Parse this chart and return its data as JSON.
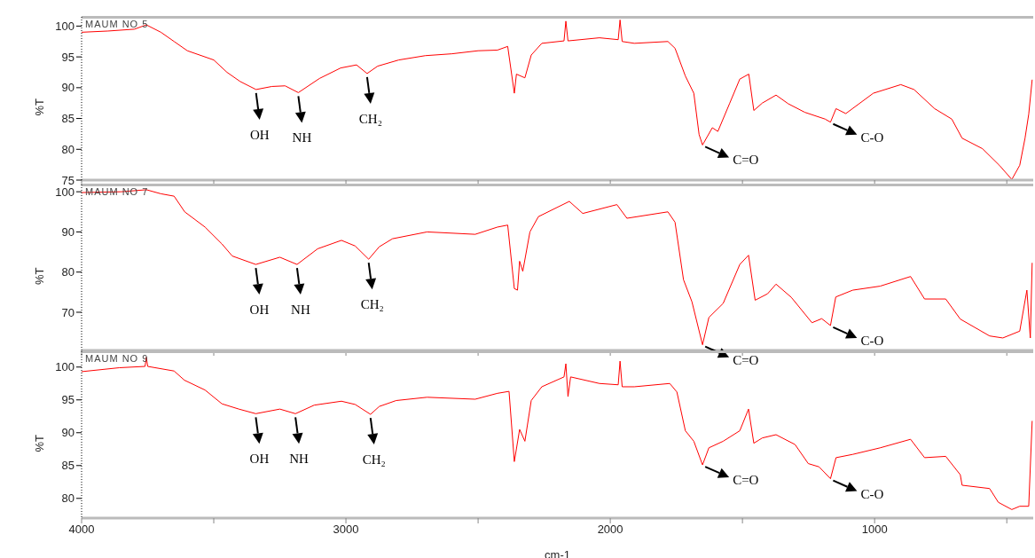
{
  "chart_data": [
    {
      "type": "line",
      "ylabel": "%T",
      "xlim": [
        4000,
        400
      ],
      "xticks": [
        4000,
        {
          "value": 3500,
          "label": null
        },
        3000,
        {
          "value": 2500,
          "label": null
        },
        2000,
        {
          "value": 1500,
          "label": null
        },
        1000,
        {
          "value": 500,
          "label": null
        }
      ],
      "ylim": [
        75,
        101.5
      ],
      "yticks": [
        75,
        80,
        85,
        90,
        95,
        100
      ],
      "tick_labels": "y",
      "marker": "none",
      "series": [
        {
          "name": "MAUM NO 5",
          "color": "#ff0000",
          "x": [
            4000,
            3900,
            3800,
            3755,
            3700,
            3650,
            3600,
            3500,
            3450,
            3400,
            3340,
            3280,
            3230,
            3180,
            3100,
            3020,
            2960,
            2920,
            2880,
            2800,
            2700,
            2600,
            2500,
            2427,
            2388,
            2363,
            2355,
            2323,
            2299,
            2259,
            2175,
            2168,
            2160,
            2041,
            1970,
            1963,
            1955,
            1909,
            1782,
            1755,
            1716,
            1684,
            1664,
            1651,
            1614,
            1593,
            1548,
            1510,
            1476,
            1457,
            1425,
            1373,
            1327,
            1264,
            1187,
            1167,
            1146,
            1109,
            1005,
            901,
            851,
            773,
            708,
            669,
            592,
            528,
            481,
            451,
            431,
            417,
            404
          ],
          "values": [
            99,
            99.2,
            99.5,
            100.2,
            99,
            97.5,
            96,
            94.5,
            92.5,
            91,
            89.7,
            90.2,
            90.3,
            89.2,
            91.5,
            93.2,
            93.7,
            92.3,
            93.5,
            94.5,
            95.2,
            95.5,
            96,
            96.1,
            96.7,
            89.1,
            92.2,
            91.6,
            95.3,
            97.2,
            97.6,
            100.8,
            97.6,
            98.1,
            97.8,
            101,
            97.5,
            97.2,
            97.5,
            96.4,
            91.9,
            89.1,
            82.4,
            80.7,
            83.5,
            82.9,
            87.5,
            91.4,
            92.2,
            86.3,
            87.5,
            88.8,
            87.4,
            86,
            84.9,
            84.4,
            86.6,
            85.8,
            89.1,
            90.5,
            89.7,
            86.6,
            84.9,
            81.8,
            80.1,
            77.4,
            75.1,
            77.4,
            81.8,
            85.7,
            91.3
          ]
        }
      ],
      "annotations": [
        {
          "text": "OH",
          "x": 3340,
          "y": 89.7
        },
        {
          "text": "NH",
          "x": 3180,
          "y": 89.2
        },
        {
          "text": "CH₂",
          "x": 2920,
          "y": 92.3
        },
        {
          "text": "C=O",
          "x": 1651,
          "y": 80.7
        },
        {
          "text": "C-O",
          "x": 1167,
          "y": 84.4
        }
      ]
    },
    {
      "type": "line",
      "ylabel": "%T",
      "xlim": [
        4000,
        400
      ],
      "xticks": [
        4000,
        {
          "value": 3500,
          "label": null
        },
        3000,
        {
          "value": 2500,
          "label": null
        },
        2000,
        {
          "value": 1500,
          "label": null
        },
        1000,
        {
          "value": 500,
          "label": null
        }
      ],
      "ylim": [
        60.5,
        101.8
      ],
      "yticks": [
        70,
        80,
        90,
        100
      ],
      "tick_labels": "y",
      "marker": "none",
      "series": [
        {
          "name": "MAUM NO 7",
          "color": "#ff0000",
          "x": [
            4000,
            3850,
            3755,
            3700,
            3650,
            3610,
            3533,
            3469,
            3430,
            3341,
            3250,
            3185,
            3107,
            3017,
            2965,
            2914,
            2874,
            2824,
            2693,
            2511,
            2427,
            2388,
            2363,
            2351,
            2343,
            2331,
            2304,
            2272,
            2155,
            2104,
            1975,
            1937,
            1782,
            1755,
            1723,
            1691,
            1651,
            1627,
            1573,
            1510,
            1477,
            1452,
            1405,
            1373,
            1315,
            1237,
            1200,
            1167,
            1147,
            1083,
            979,
            864,
            811,
            731,
            676,
            565,
            515,
            451,
            424,
            411,
            404
          ],
          "values": [
            99.8,
            100,
            100.5,
            99.5,
            98.9,
            95,
            91.2,
            87,
            84,
            81.9,
            83.7,
            81.9,
            85.8,
            87.9,
            86.5,
            83.2,
            86.3,
            88.3,
            90,
            89.4,
            91.2,
            91.7,
            75.9,
            75.5,
            82.7,
            80.2,
            90,
            93.8,
            97.6,
            94.6,
            96.8,
            93.4,
            95,
            92.4,
            78.1,
            72.6,
            61.9,
            68.7,
            72.2,
            81.9,
            84.2,
            73,
            74.6,
            77,
            73.7,
            67.4,
            68.4,
            66.7,
            73.8,
            75.5,
            76.5,
            78.9,
            73.3,
            73.3,
            68.3,
            64.1,
            63.6,
            65.3,
            75.5,
            63.6,
            82.3
          ]
        }
      ],
      "annotations": [
        {
          "text": "OH",
          "x": 3341,
          "y": 81.9
        },
        {
          "text": "NH",
          "x": 3185,
          "y": 81.9
        },
        {
          "text": "CH₂",
          "x": 2914,
          "y": 83.2
        },
        {
          "text": "C=O",
          "x": 1651,
          "y": 61.9
        },
        {
          "text": "C-O",
          "x": 1167,
          "y": 66.7
        }
      ]
    },
    {
      "type": "line",
      "ylabel": "%T",
      "xlabel": "cm-1",
      "xlim": [
        4000,
        400
      ],
      "xticks": [
        4000,
        {
          "value": 3500,
          "label": null
        },
        3000,
        {
          "value": 2500,
          "label": null
        },
        2000,
        {
          "value": 1500,
          "label": null
        },
        1000,
        {
          "value": 500,
          "label": null
        }
      ],
      "ylim": [
        77,
        102.4
      ],
      "yticks": [
        80,
        85,
        90,
        95,
        100
      ],
      "marker": "none",
      "series": [
        {
          "name": "MAUM NO 9",
          "color": "#ff0000",
          "x": [
            4000,
            3857,
            3760,
            3755,
            3750,
            3650,
            3611,
            3533,
            3469,
            3405,
            3341,
            3250,
            3191,
            3120,
            3017,
            2965,
            2907,
            2874,
            2810,
            2693,
            2511,
            2427,
            2383,
            2363,
            2343,
            2323,
            2299,
            2259,
            2175,
            2168,
            2160,
            2150,
            2041,
            1970,
            1963,
            1955,
            1909,
            1775,
            1748,
            1716,
            1684,
            1651,
            1627,
            1573,
            1510,
            1477,
            1457,
            1425,
            1373,
            1301,
            1251,
            1210,
            1167,
            1146,
            1083,
            979,
            864,
            811,
            731,
            676,
            669,
            565,
            532,
            481,
            451,
            417,
            404
          ],
          "values": [
            99.3,
            99.9,
            100.1,
            101.5,
            100.1,
            99.4,
            98,
            96.5,
            94.4,
            93.6,
            92.9,
            93.6,
            92.9,
            94.2,
            94.8,
            94.3,
            92.8,
            94,
            94.9,
            95.4,
            95.1,
            96,
            96.3,
            85.6,
            90.5,
            88.7,
            94.9,
            97,
            98.5,
            100.5,
            95.5,
            98.5,
            97.5,
            97.3,
            100.9,
            97,
            97,
            97.5,
            96.2,
            90.3,
            88.7,
            85.1,
            87.7,
            88.7,
            90.3,
            93.6,
            88.4,
            89.2,
            89.7,
            88.2,
            85.3,
            84.8,
            83,
            86.2,
            86.7,
            87.7,
            89,
            86.2,
            86.4,
            83.6,
            82,
            81.5,
            79.4,
            78.3,
            78.8,
            78.8,
            91.8
          ]
        }
      ],
      "annotations": [
        {
          "text": "OH",
          "x": 3341,
          "y": 92.9
        },
        {
          "text": "NH",
          "x": 3191,
          "y": 92.9
        },
        {
          "text": "CH₂",
          "x": 2907,
          "y": 92.8
        },
        {
          "text": "C=O",
          "x": 1651,
          "y": 85.1
        },
        {
          "text": "C-O",
          "x": 1167,
          "y": 83
        }
      ]
    }
  ]
}
